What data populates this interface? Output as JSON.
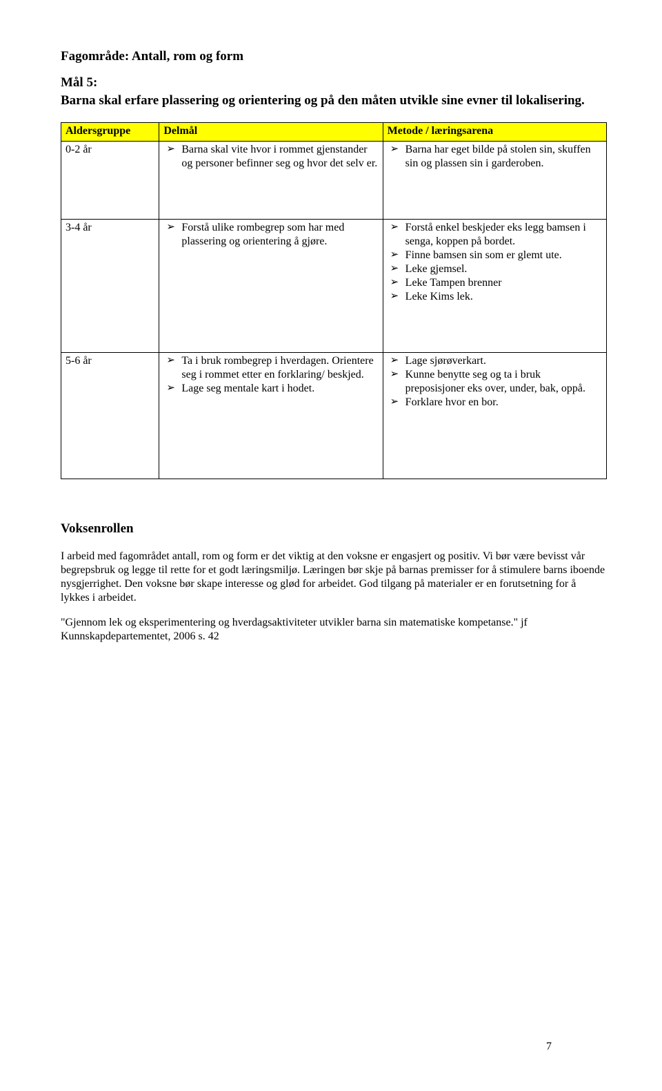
{
  "heading": "Fagområde: Antall, rom og form",
  "goal_label": "Mål 5:",
  "goal_text": "Barna skal erfare plassering og orientering og på den måten utvikle sine evner til lokalisering.",
  "table": {
    "headers": [
      "Aldersgruppe",
      "Delmål",
      "Metode / læringsarena"
    ],
    "rows": [
      {
        "age": "0-2 år",
        "delmal": [
          "Barna skal vite hvor i rommet gjenstander og personer befinner seg og hvor det selv er."
        ],
        "metode": [
          "Barna har eget bilde på stolen sin, skuffen sin og plassen sin i garderoben."
        ]
      },
      {
        "age": "3-4 år",
        "delmal": [
          "Forstå ulike rombegrep som har med plassering og orientering å gjøre."
        ],
        "metode": [
          "Forstå enkel beskjeder eks legg bamsen i senga, koppen på bordet.",
          "Finne bamsen sin som er glemt ute.",
          "Leke gjemsel.",
          "Leke Tampen brenner",
          "Leke Kims lek."
        ]
      },
      {
        "age": "5-6 år",
        "delmal": [
          "Ta i bruk rombegrep i hverdagen. Orientere seg i rommet etter en forklaring/ beskjed.",
          "Lage seg mentale kart i hodet."
        ],
        "metode": [
          "Lage sjørøverkart.",
          "Kunne benytte seg og ta i bruk preposisjoner eks over, under, bak, oppå.",
          "Forklare hvor en bor."
        ]
      }
    ]
  },
  "voksen": {
    "heading": "Voksenrollen",
    "p1": "I arbeid med fagområdet antall, rom og form er det viktig at den voksne er engasjert og positiv. Vi bør være bevisst vår begrepsbruk og legge til rette for et godt læringsmiljø. Læringen bør skje på barnas premisser for å stimulere barns iboende nysgjerrighet. Den voksne bør skape interesse og glød for arbeidet. God tilgang på materialer er en forutsetning for å lykkes i arbeidet.",
    "p2": "\"Gjennom lek og eksperimentering og hverdagsaktiviteter utvikler barna sin matematiske kompetanse.\" jf Kunnskapdepartementet, 2006 s. 42"
  },
  "page_number": "7",
  "colors": {
    "header_bg": "#ffff00",
    "border": "#000000",
    "text": "#000000",
    "bg": "#ffffff"
  },
  "fonts": {
    "family": "Times New Roman",
    "heading_size_pt": 14,
    "body_size_pt": 12
  }
}
